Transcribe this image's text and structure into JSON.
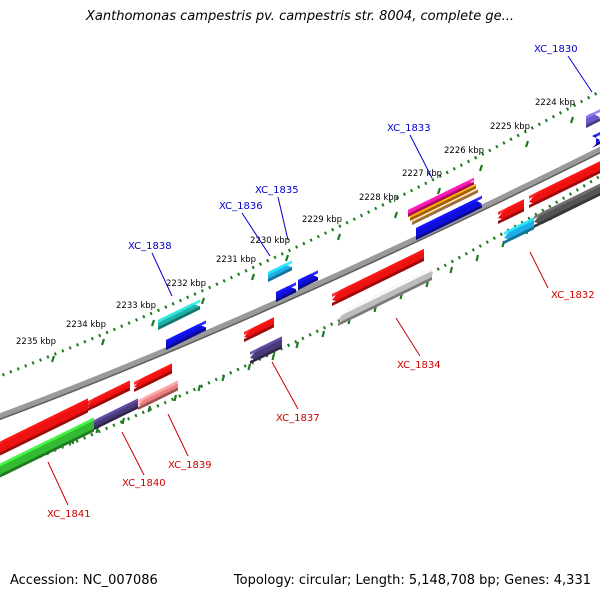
{
  "title": "Xanthomonas campestris pv. campestris str. 8004, complete ge...",
  "footer": {
    "accession_label": "Accession:",
    "accession": "NC_007086",
    "topology_text": "Topology: circular; Length: 5,148,708 bp; Genes: 4,331"
  },
  "colors": {
    "backbone": "#8a8a8a",
    "tick": "#1f7a1f",
    "forward_label": "#0000cc",
    "reverse_label": "#cc0000"
  },
  "scale": {
    "unit": "kbp",
    "tick_labels": [
      "2224 kbp",
      "2225 kbp",
      "2226 kbp",
      "2227 kbp",
      "2228 kbp",
      "2229 kbp",
      "2230 kbp",
      "2231 kbp",
      "2232 kbp",
      "2233 kbp",
      "2234 kbp",
      "2235 kbp"
    ]
  },
  "genes": [
    {
      "label": "XC_1830",
      "strand": "forward",
      "color": "#6a5acd"
    },
    {
      "label": "XC_1832",
      "strand": "reverse",
      "color": "#ee1111"
    },
    {
      "label": "XC_1833",
      "strand": "forward",
      "color": "#ff1493"
    },
    {
      "label": "XC_1834",
      "strand": "reverse",
      "color": "#ee1111"
    },
    {
      "label": "XC_1835",
      "strand": "forward",
      "color": "#1faee8"
    },
    {
      "label": "XC_1836",
      "strand": "forward",
      "color": "#1010dd"
    },
    {
      "label": "XC_1837",
      "strand": "reverse",
      "color": "#ee1111"
    },
    {
      "label": "XC_1838",
      "strand": "forward",
      "color": "#20b2aa"
    },
    {
      "label": "XC_1839",
      "strand": "reverse",
      "color": "#ee1111"
    },
    {
      "label": "XC_1840",
      "strand": "reverse",
      "color": "#ee1111"
    },
    {
      "label": "XC_1841",
      "strand": "reverse",
      "color": "#ee1111"
    }
  ]
}
